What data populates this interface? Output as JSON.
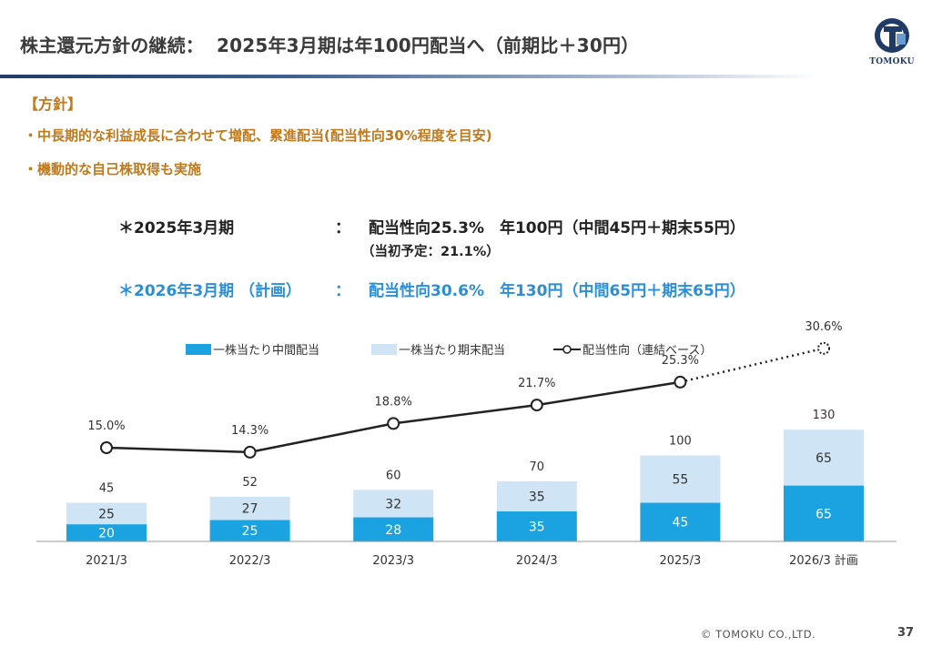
{
  "header": {
    "title": "株主還元方針の継続：",
    "subtitle": "2025年3月期は年100円配当へ（前期比＋30円）",
    "logo_text": "TOMOKU"
  },
  "policy": {
    "heading": "【方針】",
    "bullets": [
      "・中長期的な利益成長に合わせて増配、累進配当(配当性向30%程度を目安)",
      "・機動的な自己株取得も実施"
    ]
  },
  "summary": {
    "fy2025_label": "＊2025年3月期",
    "fy2025_colon": "：",
    "fy2025_value": "配当性向25.3%　年100円（中間45円＋期末55円）",
    "fy2025_note": "（当初予定：21.1%）",
    "fy2026_label": "＊2026年3月期 （計画）",
    "fy2026_colon": "：",
    "fy2026_value": "配当性向30.6%　年130円（中間65円＋期末65円）"
  },
  "chart_data": {
    "type": "bar",
    "stacked": true,
    "categories": [
      "2021/3",
      "2022/3",
      "2023/3",
      "2024/3",
      "2025/3",
      "2026/3 計画"
    ],
    "series": [
      {
        "name": "一株当たり中間配当",
        "values": [
          20,
          25,
          28,
          35,
          45,
          65
        ],
        "color": "#1aa3e0"
      },
      {
        "name": "一株当たり期末配当",
        "values": [
          25,
          27,
          32,
          35,
          55,
          65
        ],
        "color": "#cfe4f4"
      }
    ],
    "totals": [
      45,
      52,
      60,
      70,
      100,
      130
    ],
    "line_series": {
      "name": "配当性向（連結ベース）",
      "values": [
        15.0,
        14.3,
        18.8,
        21.7,
        25.3,
        30.6
      ],
      "labels": [
        "15.0%",
        "14.3%",
        "18.8%",
        "21.7%",
        "25.3%",
        "30.6%"
      ],
      "color": "#222222",
      "last_point_planned": true
    },
    "legend_position": "top",
    "grid": false
  },
  "footer": {
    "copyright": "© TOMOKU CO.,LTD.",
    "page": "37"
  }
}
